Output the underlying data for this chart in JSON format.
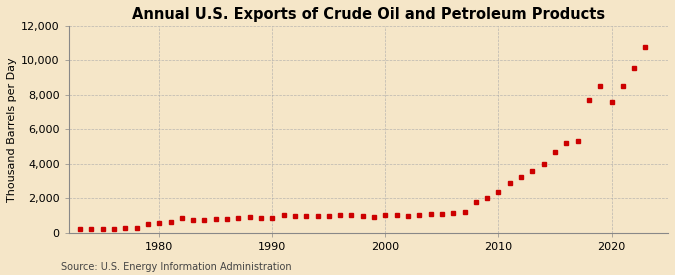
{
  "title": "Annual U.S. Exports of Crude Oil and Petroleum Products",
  "ylabel": "Thousand Barrels per Day",
  "source": "Source: U.S. Energy Information Administration",
  "background_color": "#f5e6c8",
  "marker_color": "#cc0000",
  "ylim": [
    0,
    12000
  ],
  "yticks": [
    0,
    2000,
    4000,
    6000,
    8000,
    10000,
    12000
  ],
  "xlim": [
    1972,
    2025
  ],
  "xticks": [
    1980,
    1990,
    2000,
    2010,
    2020
  ],
  "years": [
    1973,
    1974,
    1975,
    1976,
    1977,
    1978,
    1979,
    1980,
    1981,
    1982,
    1983,
    1984,
    1985,
    1986,
    1987,
    1988,
    1989,
    1990,
    1991,
    1992,
    1993,
    1994,
    1995,
    1996,
    1997,
    1998,
    1999,
    2000,
    2001,
    2002,
    2003,
    2004,
    2005,
    2006,
    2007,
    2008,
    2009,
    2010,
    2011,
    2012,
    2013,
    2014,
    2015,
    2016,
    2017,
    2018,
    2019,
    2020,
    2021,
    2022,
    2023
  ],
  "values": [
    230,
    230,
    210,
    220,
    240,
    280,
    470,
    540,
    590,
    820,
    740,
    720,
    780,
    800,
    870,
    910,
    860,
    860,
    1000,
    950,
    970,
    940,
    950,
    1020,
    1000,
    960,
    930,
    1040,
    1010,
    980,
    1010,
    1050,
    1100,
    1140,
    1200,
    1800,
    2000,
    2350,
    2900,
    3200,
    3590,
    3970,
    4660,
    5200,
    5300,
    7700,
    8530,
    7600,
    8530,
    9530,
    10760
  ],
  "title_fontsize": 10.5,
  "ylabel_fontsize": 8,
  "source_fontsize": 7,
  "tick_fontsize": 8,
  "marker_size": 3.5
}
